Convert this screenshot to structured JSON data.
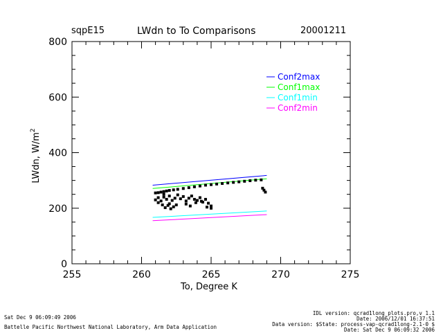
{
  "header": {
    "site": "sqpE15",
    "title": "LWdn to To Comparisons",
    "date": "20001211"
  },
  "footer": {
    "run_time": "Sat Dec  9 06:09:49 2006",
    "lab": "Battelle Pacific Northwest National Laboratory, Arm Data Application",
    "idl_version": "IDL version: qcrad1long_plots.pro,v 1.1",
    "date_line": "Date: 2006/12/01 16:37:51",
    "data_version": "Data version: $State: process-vap-qcrad1long-2.1-0 $",
    "date_line2": "Date: Sat Dec  9 06:09:32 2006"
  },
  "chart_data": {
    "type": "scatter",
    "title": "LWdn to To Comparisons",
    "xlabel": "To, Degree K",
    "ylabel": "LWdn, W/m",
    "ylabel_superscript": "2",
    "xlim": [
      255,
      275
    ],
    "ylim": [
      0,
      800
    ],
    "x_ticks": [
      255,
      260,
      265,
      270,
      275
    ],
    "y_ticks": [
      0,
      200,
      400,
      600,
      800
    ],
    "grid": false,
    "legend_position": "top-right",
    "series": [
      {
        "name": "Conf2max",
        "color": "#0000ff",
        "kind": "line",
        "x": [
          260.8,
          269.0
        ],
        "y": [
          283,
          318
        ]
      },
      {
        "name": "Conf1max",
        "color": "#00ff00",
        "kind": "line",
        "x": [
          260.8,
          269.0
        ],
        "y": [
          271,
          306
        ]
      },
      {
        "name": "Conf1min",
        "color": "#00ffff",
        "kind": "line",
        "x": [
          260.8,
          269.0
        ],
        "y": [
          167,
          190
        ]
      },
      {
        "name": "Conf2min",
        "color": "#ff00ff",
        "kind": "line",
        "x": [
          260.8,
          269.0
        ],
        "y": [
          155,
          177
        ]
      }
    ],
    "observations": {
      "color": "#000000",
      "x": [
        261.0,
        261.2,
        261.4,
        261.6,
        261.8,
        262.0,
        262.3,
        262.6,
        263.0,
        263.4,
        263.8,
        264.2,
        264.6,
        265.0,
        265.4,
        265.8,
        266.2,
        266.6,
        267.0,
        267.4,
        267.8,
        268.2,
        268.6,
        261.0,
        261.2,
        261.4,
        261.6,
        261.8,
        262.0,
        262.2,
        262.4,
        262.6,
        262.8,
        263.0,
        263.2,
        263.4,
        263.6,
        263.8,
        264.0,
        264.2,
        264.4,
        264.6,
        264.8,
        265.0,
        261.5,
        261.7,
        261.9,
        262.1,
        262.3,
        262.5,
        263.2,
        263.5,
        263.9,
        264.3,
        264.7,
        265.0,
        262.0,
        261.2,
        261.6,
        268.7,
        268.8,
        268.9
      ],
      "y": [
        255,
        256,
        258,
        260,
        262,
        264,
        266,
        268,
        271,
        274,
        277,
        280,
        283,
        285,
        287,
        289,
        291,
        293,
        295,
        297,
        299,
        301,
        302,
        230,
        238,
        226,
        240,
        232,
        244,
        228,
        236,
        248,
        234,
        242,
        226,
        236,
        244,
        232,
        228,
        238,
        222,
        232,
        218,
        208,
        212,
        202,
        210,
        198,
        205,
        212,
        215,
        208,
        220,
        225,
        204,
        200,
        216,
        220,
        250,
        272,
        265,
        258
      ]
    }
  }
}
